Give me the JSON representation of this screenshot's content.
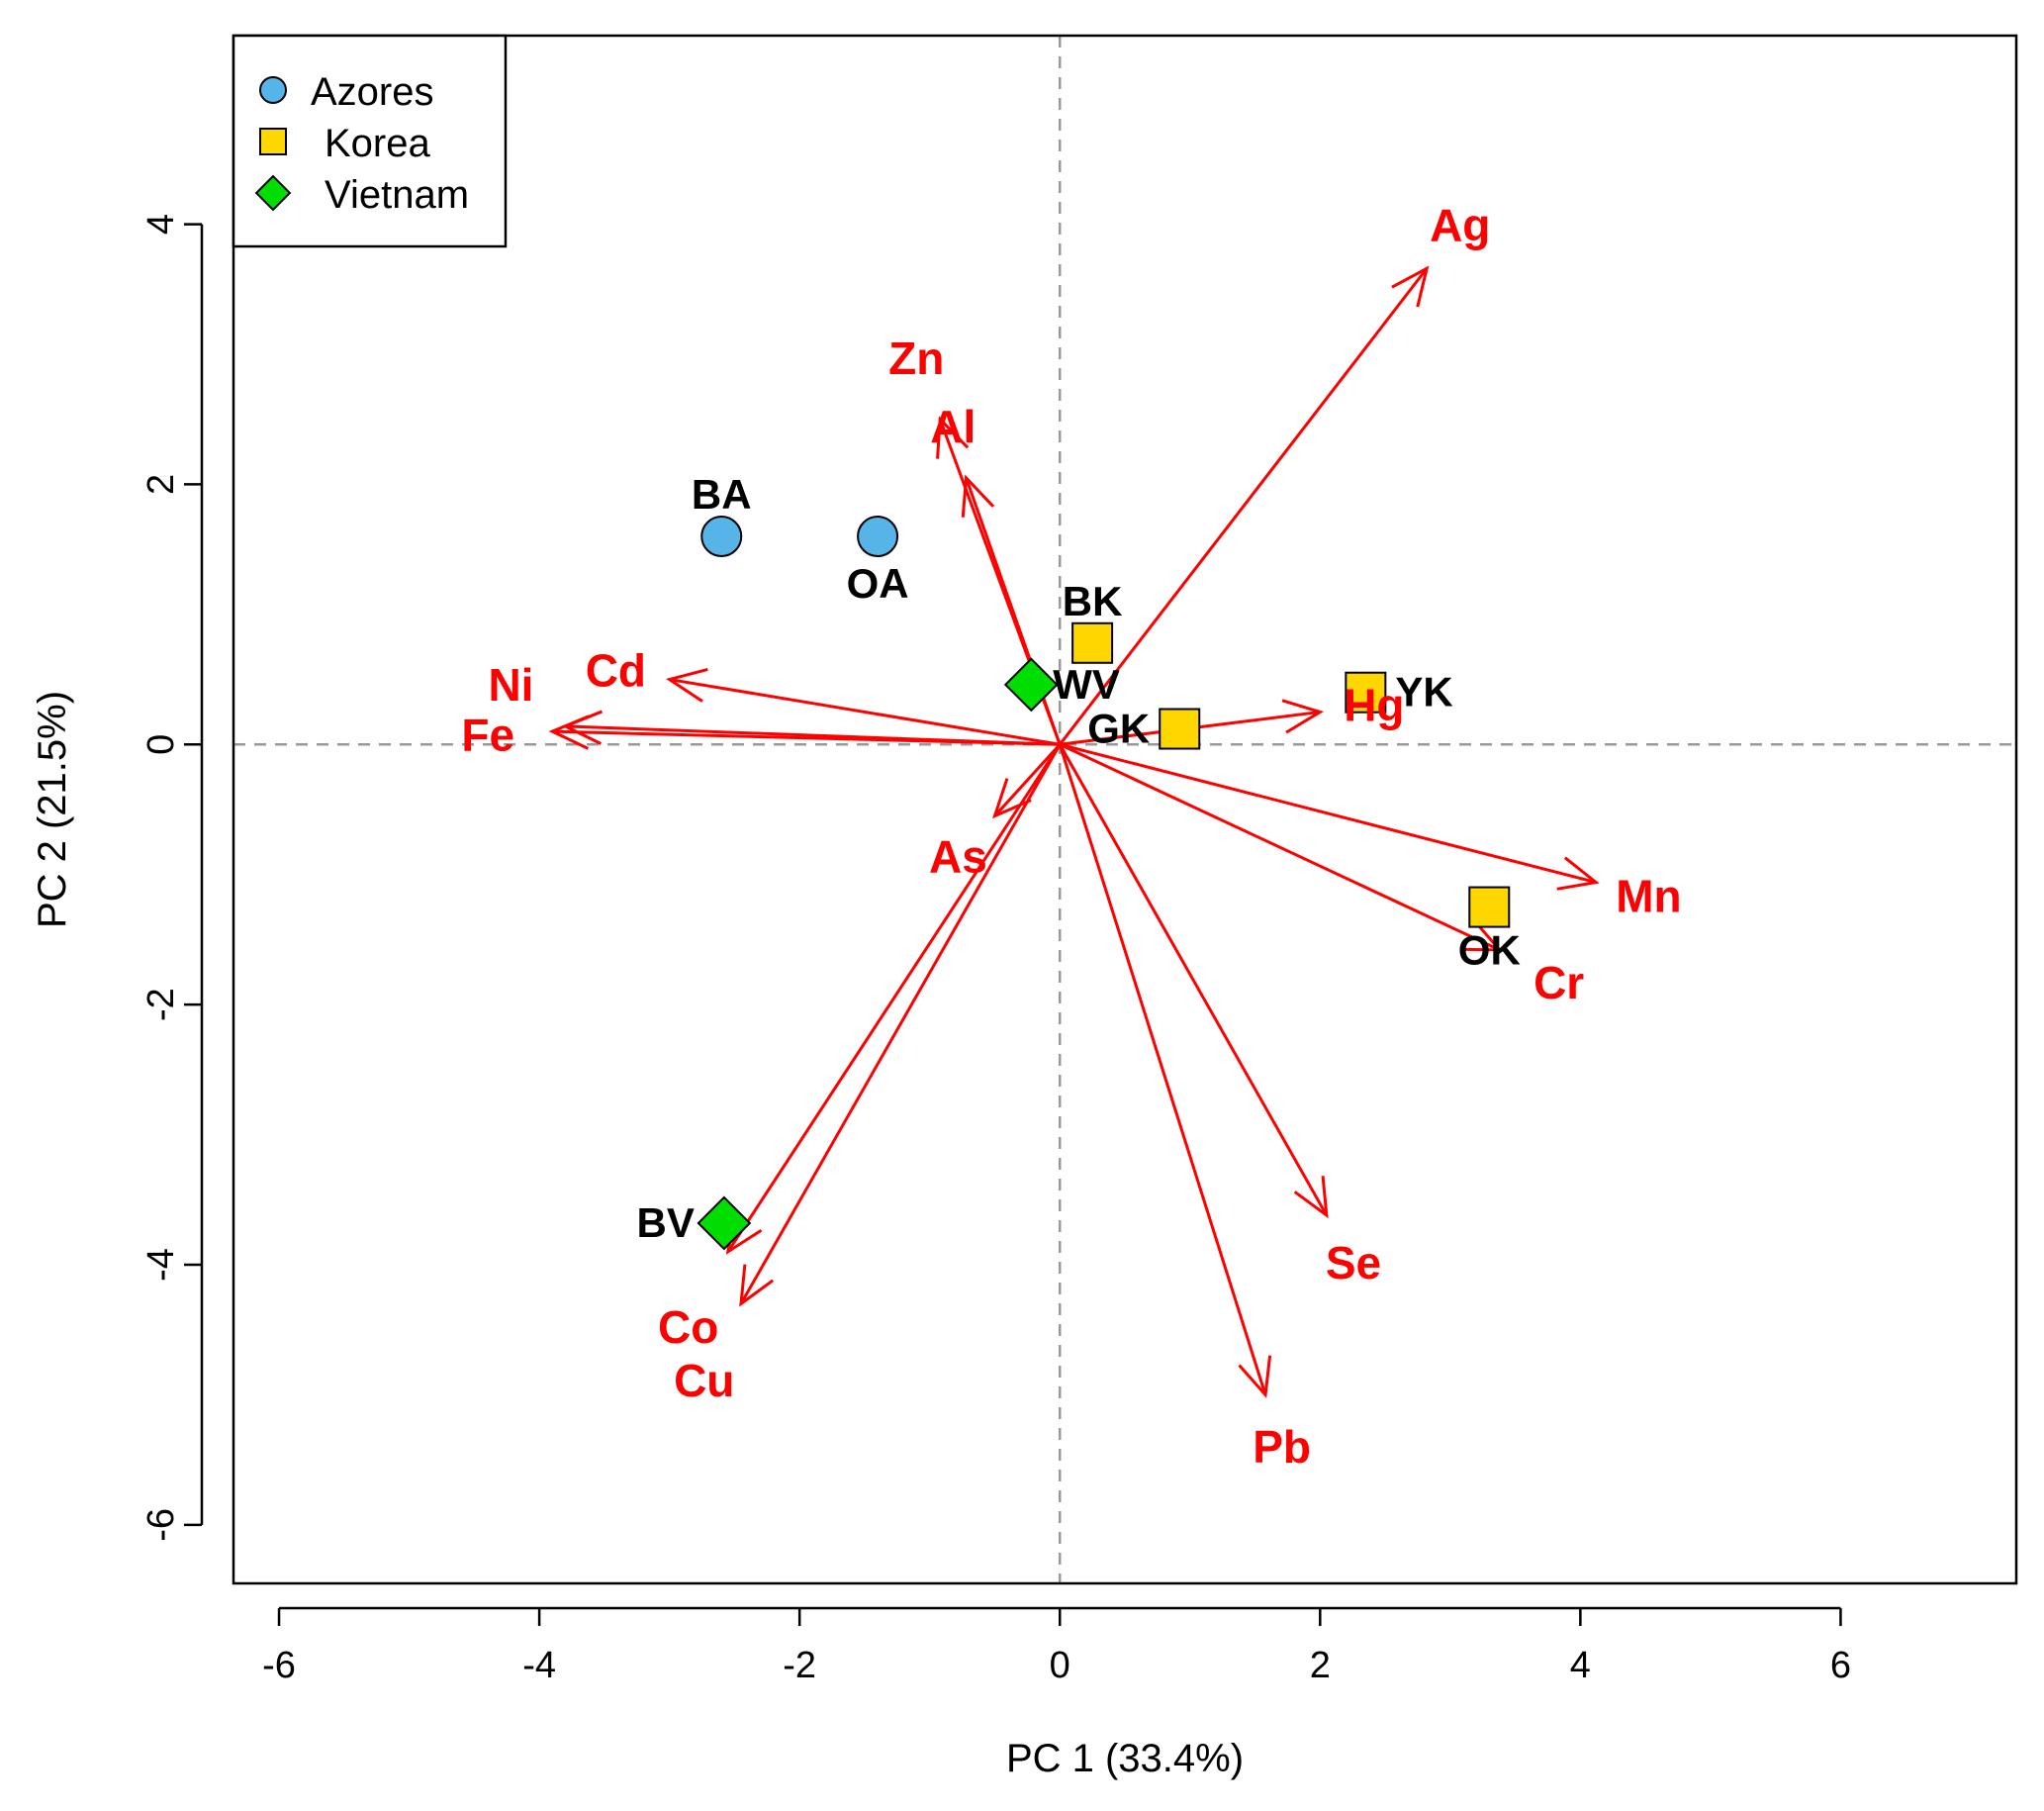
{
  "chart_data": {
    "type": "scatter",
    "subtype": "biplot",
    "title": "",
    "xlabel": "PC 1 (33.4%)",
    "ylabel": "PC 2 (21.5%)",
    "xlim": [
      -6.35,
      7.35
    ],
    "ylim": [
      -6.45,
      5.45
    ],
    "xticks": [
      -6,
      -4,
      -2,
      0,
      2,
      4,
      6
    ],
    "yticks": [
      -6,
      -4,
      -2,
      0,
      2,
      4
    ],
    "reference_lines": {
      "x": 0,
      "y": 0,
      "style": "dashed"
    },
    "arrow_color": "#ff0000",
    "groups": [
      {
        "name": "Azores",
        "marker": "circle",
        "color": "#56b4e9"
      },
      {
        "name": "Korea",
        "marker": "square",
        "color": "#ffd700"
      },
      {
        "name": "Vietnam",
        "marker": "diamond",
        "color": "#00dd00"
      }
    ],
    "points": [
      {
        "label": "BA",
        "group": "Azores",
        "x": -2.6,
        "y": 1.6
      },
      {
        "label": "OA",
        "group": "Azores",
        "x": -1.4,
        "y": 1.6
      },
      {
        "label": "BK",
        "group": "Korea",
        "x": 0.25,
        "y": 0.78
      },
      {
        "label": "GK",
        "group": "Korea",
        "x": 0.92,
        "y": 0.12
      },
      {
        "label": "YK",
        "group": "Korea",
        "x": 2.35,
        "y": 0.4
      },
      {
        "label": "OK",
        "group": "Korea",
        "x": 3.3,
        "y": -1.25
      },
      {
        "label": "WV",
        "group": "Vietnam",
        "x": -0.22,
        "y": 0.46
      },
      {
        "label": "BV",
        "group": "Vietnam",
        "x": -2.58,
        "y": -3.68
      }
    ],
    "loadings": [
      {
        "label": "Ag",
        "x": 2.82,
        "y": 3.66
      },
      {
        "label": "Zn",
        "x": -0.92,
        "y": 2.5
      },
      {
        "label": "Al",
        "x": -0.72,
        "y": 2.05
      },
      {
        "label": "Cd",
        "x": -3.0,
        "y": 0.5
      },
      {
        "label": "Ni",
        "x": -3.8,
        "y": 0.14
      },
      {
        "label": "Fe",
        "x": -3.9,
        "y": 0.1
      },
      {
        "label": "Hg",
        "x": 2.0,
        "y": 0.25
      },
      {
        "label": "As",
        "x": -0.5,
        "y": -0.55
      },
      {
        "label": "Mn",
        "x": 4.12,
        "y": -1.06
      },
      {
        "label": "Cr",
        "x": 3.38,
        "y": -1.58
      },
      {
        "label": "Co",
        "x": -2.55,
        "y": -3.9
      },
      {
        "label": "Cu",
        "x": -2.45,
        "y": -4.3
      },
      {
        "label": "Se",
        "x": 2.05,
        "y": -3.62
      },
      {
        "label": "Pb",
        "x": 1.58,
        "y": -5.0
      }
    ]
  }
}
